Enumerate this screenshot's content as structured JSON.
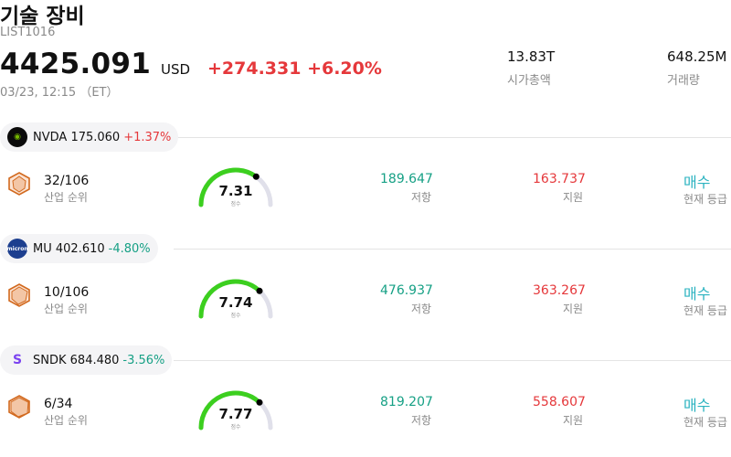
{
  "header": {
    "title": "기술 장비",
    "ticker": "LIST1016",
    "price": "4425.091",
    "currency": "USD",
    "change": "+274.331 +6.20%",
    "timestamp": "03/23, 12:15 （ET）",
    "market_cap_value": "13.83T",
    "market_cap_label": "시가총액",
    "volume_value": "648.25M",
    "volume_label": "거래량"
  },
  "labels": {
    "rank": "산업 순위",
    "score": "점수",
    "resistance": "저항",
    "support": "지원",
    "grade": "현재 등급"
  },
  "colors": {
    "up": "#e5383b",
    "down": "#16a085",
    "gauge_fill": "#3ccf1f",
    "gauge_track": "#e0e0ea",
    "grade": "#2bb3c0",
    "hex_outline": "#d2691e"
  },
  "stocks": [
    {
      "symbol": "NVDA",
      "price": "175.060",
      "change": "+1.37%",
      "direction": "up",
      "logo_icon": "nvidia-logo-icon",
      "rank": "32/106",
      "score": "7.31",
      "gauge_fraction": 0.7,
      "resistance": "189.647",
      "support": "163.737",
      "grade": "매수"
    },
    {
      "symbol": "MU",
      "price": "402.610",
      "change": "-4.80%",
      "direction": "down",
      "logo_icon": "micron-logo-icon",
      "rank": "10/106",
      "score": "7.74",
      "gauge_fraction": 0.74,
      "resistance": "476.937",
      "support": "363.267",
      "grade": "매수"
    },
    {
      "symbol": "SNDK",
      "price": "684.480",
      "change": "-3.56%",
      "direction": "down",
      "logo_icon": "sandisk-logo-icon",
      "rank": "6/34",
      "score": "7.77",
      "gauge_fraction": 0.74,
      "resistance": "819.207",
      "support": "558.607",
      "grade": "매수"
    }
  ]
}
